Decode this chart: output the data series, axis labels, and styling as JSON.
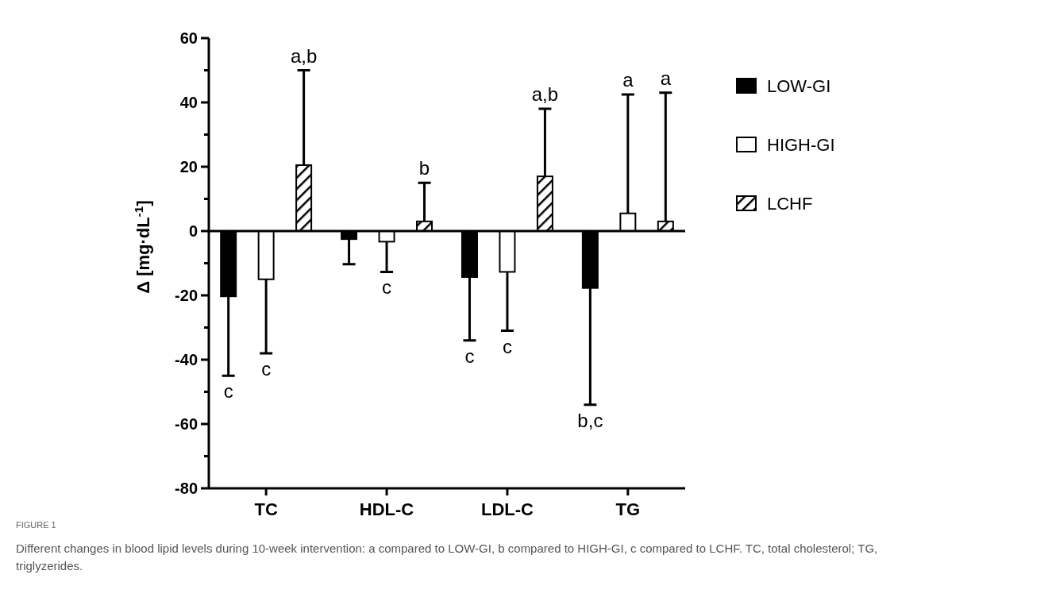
{
  "chart_data": {
    "type": "bar",
    "ylabel": "Δ [mg·dL$^{-1}$]",
    "categories": [
      "TC",
      "HDL-C",
      "LDL-C",
      "TG"
    ],
    "series": [
      {
        "name": "LOW-GI",
        "color": "#000000",
        "values": [
          -20.3,
          -2.5,
          -14.3,
          -17.7
        ],
        "errors": [
          [
            -45,
            -20.3
          ],
          [
            -10.3,
            -2.5
          ],
          [
            -34,
            -14.3
          ],
          [
            -54,
            -17.7
          ]
        ]
      },
      {
        "name": "HIGH-GI",
        "color": "#ffffff",
        "values": [
          -15,
          -3.3,
          -12.7,
          5.5
        ],
        "errors": [
          [
            -38,
            -15
          ],
          [
            -12.7,
            -3.3
          ],
          [
            -31,
            -12.7
          ],
          [
            5.5,
            42.5
          ]
        ]
      },
      {
        "name": "LCHF",
        "color": "#000000",
        "values": [
          20.5,
          3,
          17,
          3
        ],
        "errors": [
          [
            20.5,
            50
          ],
          [
            3,
            15
          ],
          [
            17,
            38
          ],
          [
            3,
            43
          ]
        ]
      }
    ],
    "ylim": [
      -80,
      60
    ],
    "yticks": [
      -80,
      {
        "value": -70,
        "label": null
      },
      -60,
      {
        "value": -50,
        "label": null
      },
      -40,
      {
        "value": -30,
        "label": null
      },
      -20,
      {
        "value": -10,
        "label": null
      },
      0,
      {
        "value": 10,
        "label": null
      },
      20,
      {
        "value": 30,
        "label": null
      },
      40,
      {
        "value": 50,
        "label": null
      },
      60
    ],
    "grid": false,
    "legend": "right",
    "ref_lines": [
      {
        "axis": "y",
        "value": 0
      }
    ],
    "annotations": [
      {
        "text": "c",
        "y": -45
      },
      {
        "text": "c",
        "y": -38
      },
      {
        "text": "a,b",
        "y": 50
      },
      {
        "text": "c",
        "y": -12.7
      },
      {
        "text": "b",
        "y": 15
      },
      {
        "text": "c",
        "y": -34
      },
      {
        "text": "c",
        "y": -31
      },
      {
        "text": "a,b",
        "y": 38
      },
      {
        "text": "b,c",
        "y": -54
      },
      {
        "text": "a",
        "y": 42.5
      },
      {
        "text": "a",
        "y": 43
      },
      "FIGURE 1",
      "Different changes in blood lipid levels during 10-week intervention: a compared to LOW-GI, b compared to HIGH-GI, c compared to LCHF. TC, total cholesterol; TG, triglyzerides."
    ]
  }
}
